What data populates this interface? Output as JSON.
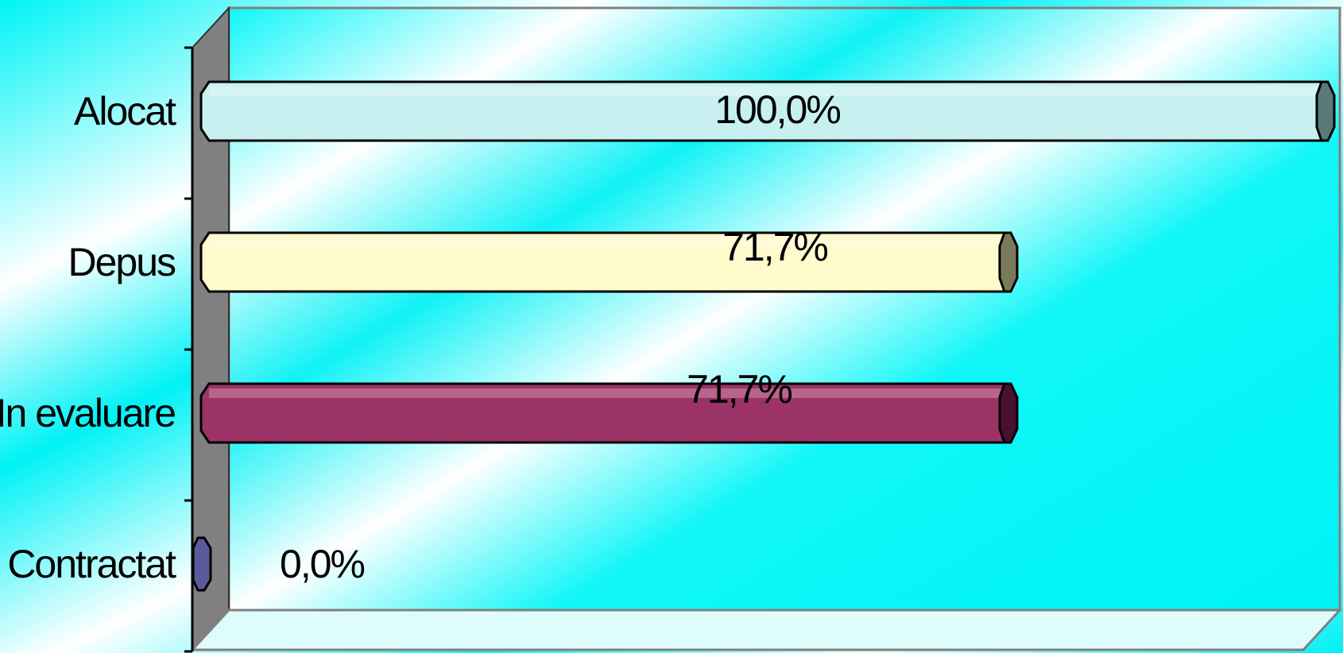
{
  "chart_data": {
    "type": "bar",
    "orientation": "horizontal",
    "categories": [
      "Alocat",
      "Depus",
      "In evaluare",
      "Contractat"
    ],
    "values": [
      100.0,
      71.7,
      71.7,
      0.0
    ],
    "data_labels": [
      "100,0%",
      "71,7%",
      "71,7%",
      "0,0%"
    ],
    "bar_colors": [
      "#c8f0f0",
      "#fffacc",
      "#9c3366",
      "#5a5a9c"
    ],
    "cap_colors": [
      "#5a7a7a",
      "#7a7a5a",
      "#4a1030",
      "#5a5a9c"
    ],
    "xlim": [
      0,
      100
    ],
    "grid": false,
    "legend": false,
    "background": "#00f0f5",
    "wall_color": "#808080"
  }
}
